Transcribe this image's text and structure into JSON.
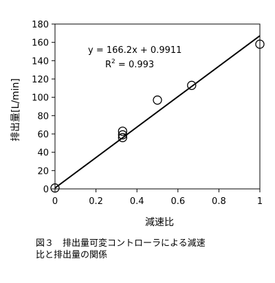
{
  "chart_data": {
    "type": "scatter",
    "xlabel": "減速比",
    "ylabel": "排出量[L/min]",
    "xlim": [
      0,
      1
    ],
    "ylim": [
      0,
      180
    ],
    "x_ticks": [
      "0",
      "0.2",
      "0.4",
      "0.6",
      "0.8",
      "1"
    ],
    "y_ticks": [
      "0",
      "20",
      "40",
      "60",
      "80",
      "100",
      "120",
      "140",
      "160",
      "180"
    ],
    "grid": false,
    "points": [
      {
        "x": 0,
        "y": 1
      },
      {
        "x": 0.33,
        "y": 56
      },
      {
        "x": 0.33,
        "y": 59
      },
      {
        "x": 0.33,
        "y": 63
      },
      {
        "x": 0.5,
        "y": 97
      },
      {
        "x": 0.667,
        "y": 113
      },
      {
        "x": 1,
        "y": 158
      }
    ],
    "trendline": {
      "slope": 166.2,
      "intercept": 0.9911,
      "x_range": [
        0,
        1
      ]
    },
    "annotations": {
      "equation": "y = 166.2x + 0.9911",
      "r2_prefix": "R",
      "r2_sup": "2",
      "r2_value": " = 0.993"
    }
  },
  "caption": {
    "line1": "図３　排出量可変コントローラによる減速",
    "line2": "比と排出量の関係"
  }
}
